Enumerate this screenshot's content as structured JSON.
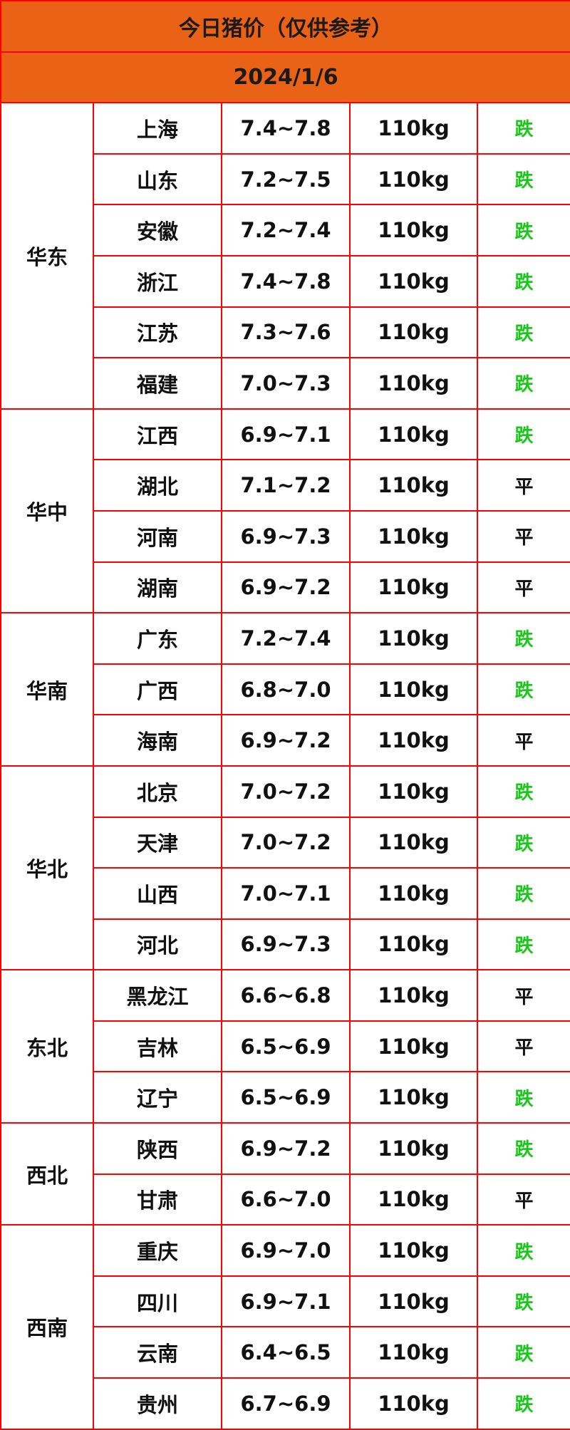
{
  "title": "今日猪价（仅供参考）",
  "date": "2024/1/6",
  "colors": {
    "header_bg": "#e96215",
    "border": "#ff0000",
    "down": "#19c919",
    "flat": "#111111"
  },
  "regions": [
    {
      "name": "华东",
      "rows": [
        {
          "province": "上海",
          "price": "7.4~7.8",
          "weight": "110kg",
          "trend": "跌"
        },
        {
          "province": "山东",
          "price": "7.2~7.5",
          "weight": "110kg",
          "trend": "跌"
        },
        {
          "province": "安徽",
          "price": "7.2~7.4",
          "weight": "110kg",
          "trend": "跌"
        },
        {
          "province": "浙江",
          "price": "7.4~7.8",
          "weight": "110kg",
          "trend": "跌"
        },
        {
          "province": "江苏",
          "price": "7.3~7.6",
          "weight": "110kg",
          "trend": "跌"
        },
        {
          "province": "福建",
          "price": "7.0~7.3",
          "weight": "110kg",
          "trend": "跌"
        }
      ]
    },
    {
      "name": "华中",
      "rows": [
        {
          "province": "江西",
          "price": "6.9~7.1",
          "weight": "110kg",
          "trend": "跌"
        },
        {
          "province": "湖北",
          "price": "7.1~7.2",
          "weight": "110kg",
          "trend": "平"
        },
        {
          "province": "河南",
          "price": "6.9~7.3",
          "weight": "110kg",
          "trend": "平"
        },
        {
          "province": "湖南",
          "price": "6.9~7.2",
          "weight": "110kg",
          "trend": "平"
        }
      ]
    },
    {
      "name": "华南",
      "rows": [
        {
          "province": "广东",
          "price": "7.2~7.4",
          "weight": "110kg",
          "trend": "跌"
        },
        {
          "province": "广西",
          "price": "6.8~7.0",
          "weight": "110kg",
          "trend": "跌"
        },
        {
          "province": "海南",
          "price": "6.9~7.2",
          "weight": "110kg",
          "trend": "平"
        }
      ]
    },
    {
      "name": "华北",
      "rows": [
        {
          "province": "北京",
          "price": "7.0~7.2",
          "weight": "110kg",
          "trend": "跌"
        },
        {
          "province": "天津",
          "price": "7.0~7.2",
          "weight": "110kg",
          "trend": "跌"
        },
        {
          "province": "山西",
          "price": "7.0~7.1",
          "weight": "110kg",
          "trend": "跌"
        },
        {
          "province": "河北",
          "price": "6.9~7.3",
          "weight": "110kg",
          "trend": "跌"
        }
      ]
    },
    {
      "name": "东北",
      "rows": [
        {
          "province": "黑龙江",
          "price": "6.6~6.8",
          "weight": "110kg",
          "trend": "平"
        },
        {
          "province": "吉林",
          "price": "6.5~6.9",
          "weight": "110kg",
          "trend": "平"
        },
        {
          "province": "辽宁",
          "price": "6.5~6.9",
          "weight": "110kg",
          "trend": "跌"
        }
      ]
    },
    {
      "name": "西北",
      "rows": [
        {
          "province": "陕西",
          "price": "6.9~7.2",
          "weight": "110kg",
          "trend": "跌"
        },
        {
          "province": "甘肃",
          "price": "6.6~7.0",
          "weight": "110kg",
          "trend": "平"
        }
      ]
    },
    {
      "name": "西南",
      "rows": [
        {
          "province": "重庆",
          "price": "6.9~7.0",
          "weight": "110kg",
          "trend": "跌"
        },
        {
          "province": "四川",
          "price": "6.9~7.1",
          "weight": "110kg",
          "trend": "跌"
        },
        {
          "province": "云南",
          "price": "6.4~6.5",
          "weight": "110kg",
          "trend": "跌"
        },
        {
          "province": "贵州",
          "price": "6.7~6.9",
          "weight": "110kg",
          "trend": "跌"
        }
      ]
    }
  ]
}
